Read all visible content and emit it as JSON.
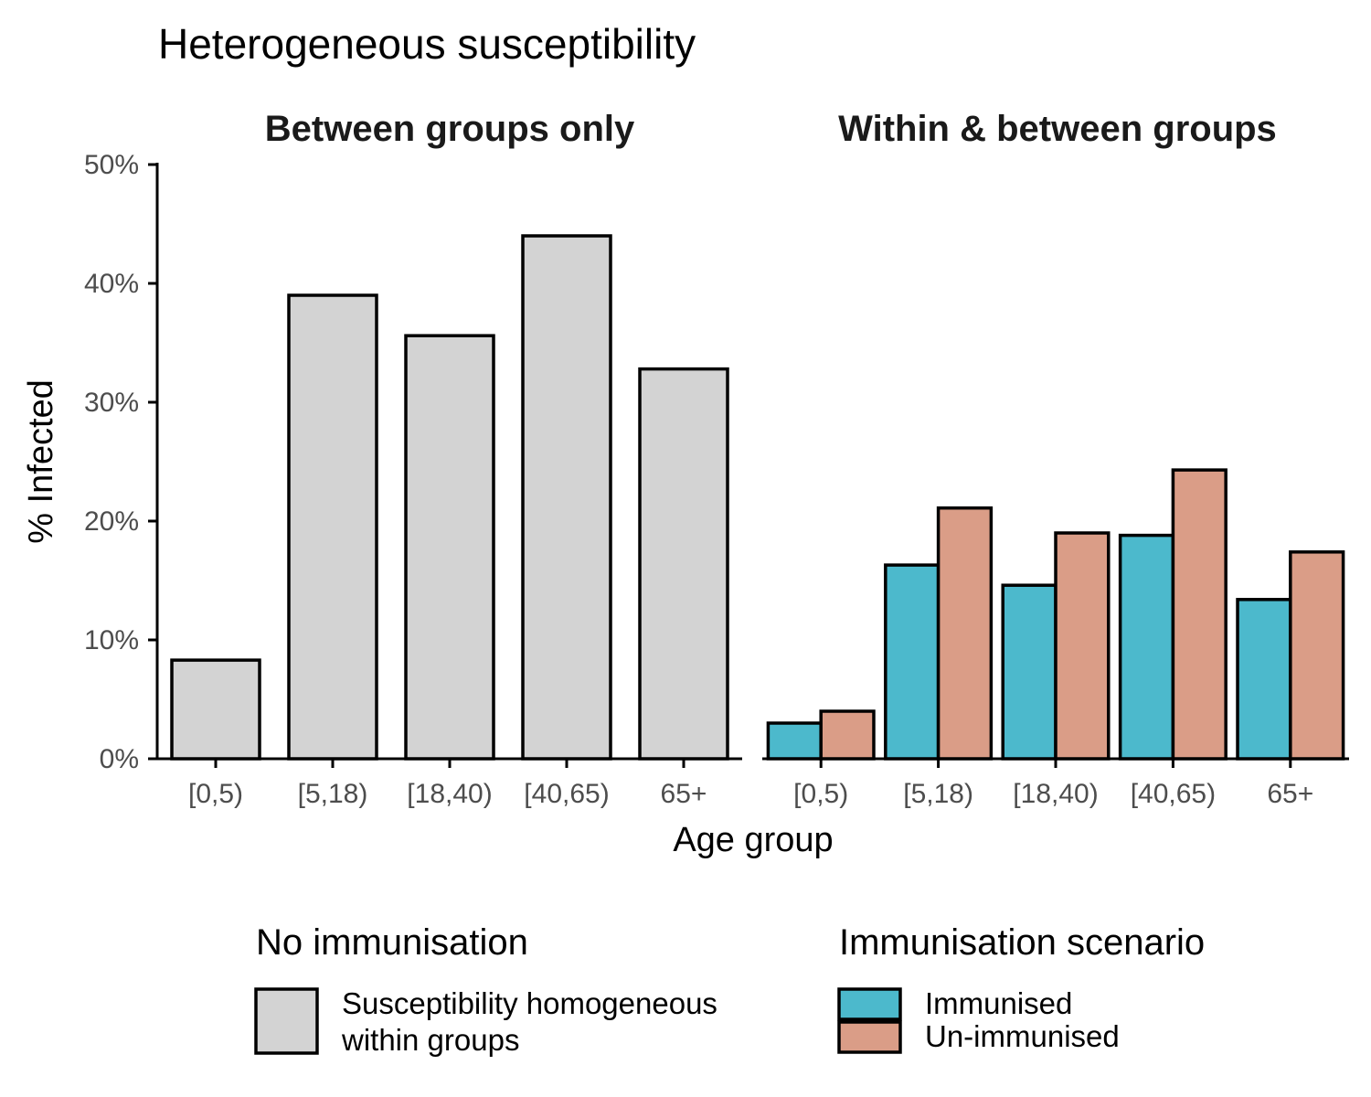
{
  "chart_data": {
    "type": "bar",
    "title": "Heterogeneous susceptibility",
    "xlabel": "Age group",
    "ylabel": "% Infected",
    "ylim": [
      0,
      50
    ],
    "y_ticks": [
      0,
      10,
      20,
      30,
      40,
      50
    ],
    "y_tick_labels": [
      "0%",
      "10%",
      "20%",
      "30%",
      "40%",
      "50%"
    ],
    "categories": [
      "[0,5)",
      "[5,18)",
      "[18,40)",
      "[40,65)",
      "65+"
    ],
    "panels": [
      {
        "title": "Between groups only",
        "series": [
          {
            "name": "Susceptibility homogeneous within groups",
            "color": "#d3d3d3",
            "values": [
              8.3,
              39.0,
              35.6,
              44.0,
              32.8
            ]
          }
        ]
      },
      {
        "title": "Within & between groups",
        "series": [
          {
            "name": "Immunised",
            "color": "#4cb9cc",
            "values": [
              3.0,
              16.3,
              14.6,
              18.8,
              13.4
            ]
          },
          {
            "name": "Un-immunised",
            "color": "#da9d87",
            "values": [
              4.0,
              21.1,
              19.0,
              24.3,
              17.4
            ]
          }
        ]
      }
    ],
    "legends": [
      {
        "title": "No immunisation",
        "items": [
          {
            "label_lines": [
              "Susceptibility homogeneous",
              "within groups"
            ],
            "color": "#d3d3d3"
          }
        ]
      },
      {
        "title": "Immunisation scenario",
        "items": [
          {
            "label_lines": [
              "Immunised"
            ],
            "color": "#4cb9cc"
          },
          {
            "label_lines": [
              "Un-immunised"
            ],
            "color": "#da9d87"
          }
        ]
      }
    ],
    "grid": false,
    "legend_position": "bottom"
  }
}
